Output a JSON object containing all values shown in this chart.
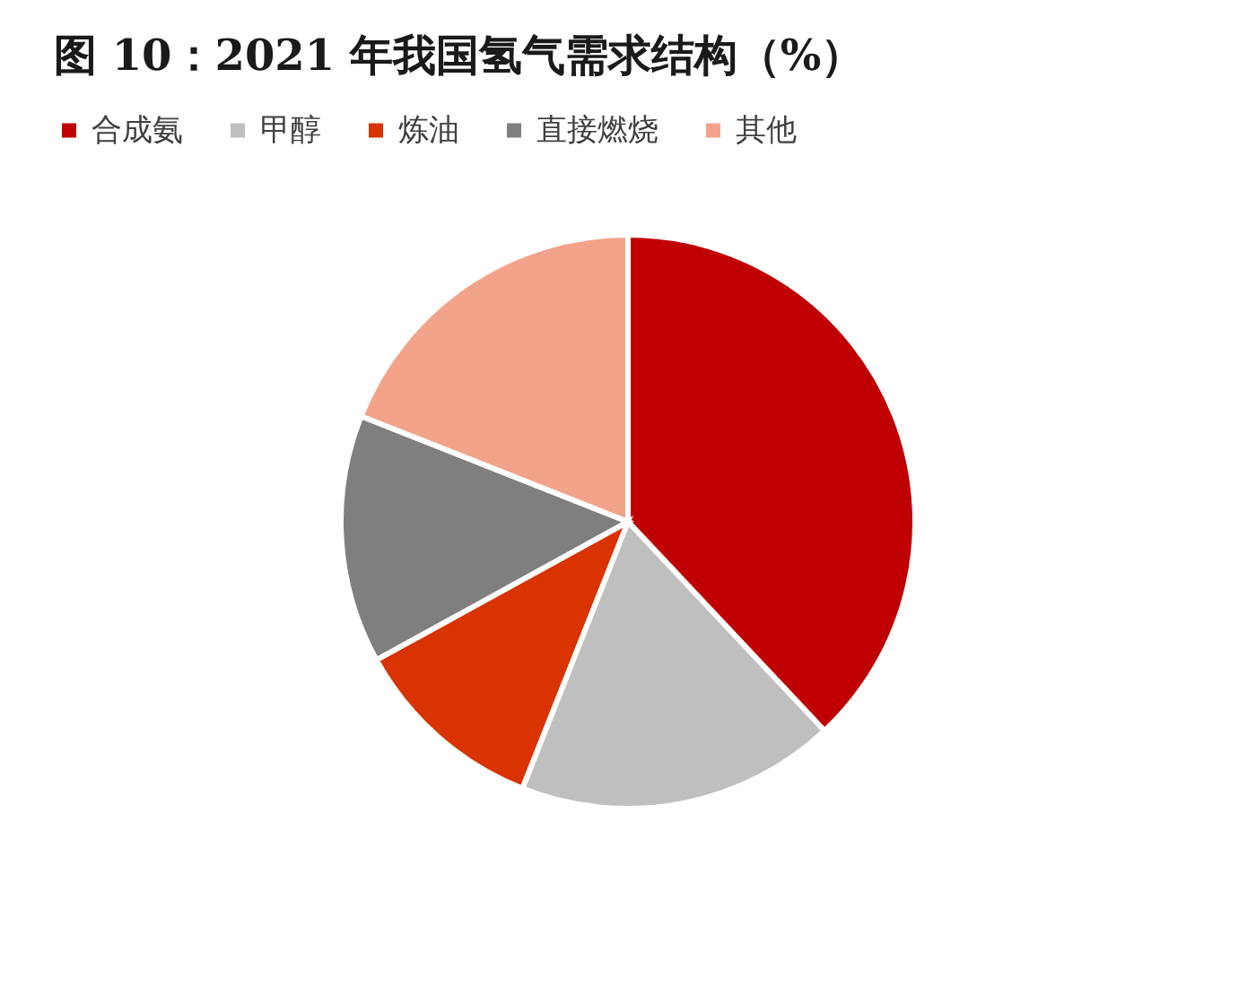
{
  "chart_data": {
    "type": "pie",
    "title": "图 10：2021 年我国氢气需求结构（%）",
    "categories": [
      "合成氨",
      "甲醇",
      "炼油",
      "直接燃烧",
      "其他"
    ],
    "values": [
      38,
      18,
      11,
      14,
      19
    ],
    "colors": [
      "#c00000",
      "#bfbfbf",
      "#d83300",
      "#7f7f7f",
      "#f4a38b"
    ],
    "legend": "top"
  }
}
